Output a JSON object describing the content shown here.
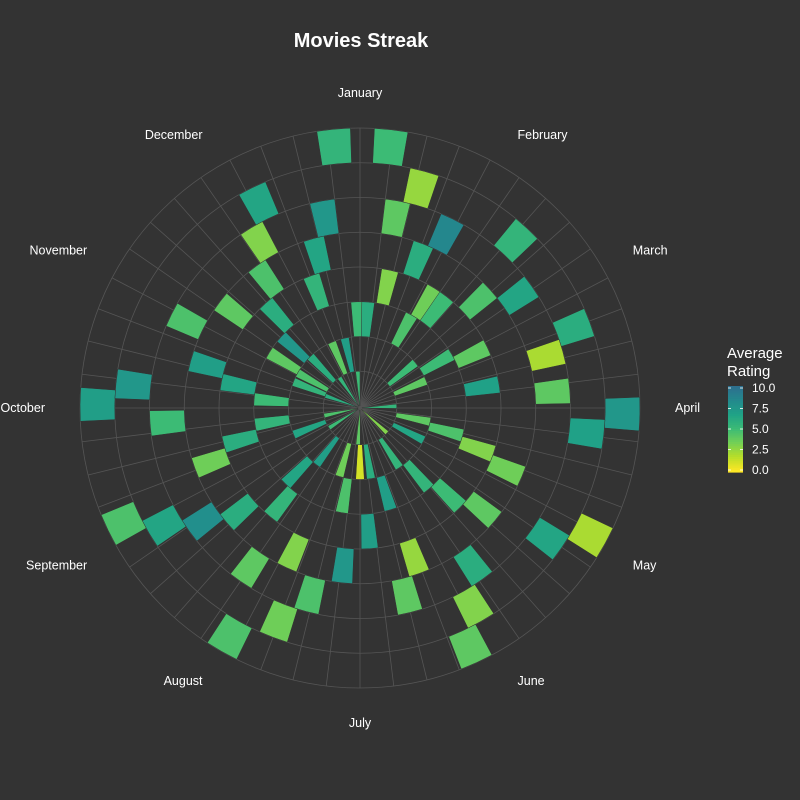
{
  "chart_data": {
    "type": "heatmap",
    "coordinate_system": "polar",
    "title": "Movies Streak",
    "theta_labels": [
      "January",
      "February",
      "March",
      "April",
      "May",
      "June",
      "July",
      "August",
      "September",
      "October",
      "November",
      "December"
    ],
    "radial_bins": 8,
    "legend": {
      "title_lines": [
        "Average",
        "Rating"
      ],
      "ticks": [
        "10.0",
        "7.5",
        "5.0",
        "2.5",
        "0.0"
      ],
      "range": [
        0,
        10
      ],
      "placement": "right"
    },
    "colorscale": [
      "#fde725",
      "#b8de29",
      "#74d055",
      "#3cbb75",
      "#20a386",
      "#238a8d",
      "#2d708e"
    ],
    "note_cells": "each cell = [day_of_year 1-365, ring 1-8 (1 = innermost), average rating]",
    "cells": [
      [
        4,
        8,
        5.0
      ],
      [
        8,
        6,
        4.0
      ],
      [
        13,
        7,
        2.5
      ],
      [
        19,
        5,
        6.0
      ],
      [
        24,
        6,
        8.5
      ],
      [
        30,
        4,
        3.5
      ],
      [
        36,
        4,
        5.0
      ],
      [
        41,
        7,
        5.5
      ],
      [
        46,
        5,
        4.5
      ],
      [
        53,
        6,
        6.5
      ],
      [
        58,
        3,
        5.0
      ],
      [
        63,
        4,
        4.0
      ],
      [
        68,
        7,
        6.0
      ],
      [
        73,
        6,
        2.0
      ],
      [
        79,
        4,
        6.8
      ],
      [
        84,
        6,
        4.0
      ],
      [
        90,
        8,
        7.5
      ],
      [
        95,
        7,
        6.8
      ],
      [
        100,
        2,
        4.0
      ],
      [
        104,
        3,
        4.5
      ],
      [
        108,
        4,
        3.0
      ],
      [
        112,
        5,
        3.5
      ],
      [
        118,
        8,
        2.0
      ],
      [
        124,
        7,
        6.5
      ],
      [
        129,
        5,
        4.0
      ],
      [
        134,
        4,
        5.0
      ],
      [
        139,
        3,
        5.5
      ],
      [
        144,
        6,
        6.0
      ],
      [
        150,
        7,
        3.0
      ],
      [
        155,
        8,
        4.0
      ],
      [
        160,
        5,
        2.5
      ],
      [
        166,
        6,
        4.0
      ],
      [
        171,
        2,
        6.0
      ],
      [
        176,
        4,
        7.0
      ],
      [
        180,
        2,
        1.0
      ],
      [
        186,
        5,
        7.5
      ],
      [
        190,
        3,
        4.5
      ],
      [
        195,
        6,
        4.5
      ],
      [
        201,
        7,
        3.5
      ],
      [
        205,
        5,
        3.0
      ],
      [
        210,
        8,
        4.5
      ],
      [
        215,
        6,
        4.0
      ],
      [
        220,
        4,
        5.5
      ],
      [
        225,
        3,
        6.5
      ],
      [
        230,
        5,
        6.0
      ],
      [
        235,
        6,
        8.0
      ],
      [
        240,
        7,
        6.5
      ],
      [
        245,
        8,
        4.5
      ],
      [
        251,
        5,
        3.5
      ],
      [
        256,
        4,
        6.0
      ],
      [
        262,
        3,
        5.5
      ],
      [
        267,
        6,
        5.0
      ],
      [
        272,
        8,
        7.0
      ],
      [
        277,
        7,
        7.5
      ],
      [
        282,
        4,
        6.5
      ],
      [
        287,
        5,
        7.0
      ],
      [
        293,
        2,
        5.5
      ],
      [
        298,
        6,
        4.5
      ],
      [
        303,
        3,
        4.0
      ],
      [
        309,
        5,
        4.0
      ],
      [
        314,
        3,
        7.5
      ],
      [
        320,
        4,
        6.0
      ],
      [
        326,
        5,
        4.5
      ],
      [
        331,
        6,
        3.0
      ],
      [
        336,
        7,
        6.5
      ],
      [
        342,
        4,
        5.5
      ],
      [
        347,
        5,
        6.5
      ],
      [
        352,
        6,
        7.5
      ],
      [
        357,
        8,
        5.5
      ],
      [
        361,
        3,
        5.0
      ],
      [
        2,
        3,
        6.0
      ],
      [
        10,
        4,
        3.0
      ],
      [
        27,
        3,
        4.5
      ],
      [
        49,
        2,
        5.0
      ],
      [
        66,
        2,
        4.0
      ],
      [
        86,
        1,
        5.5
      ],
      [
        116,
        2,
        6.5
      ],
      [
        132,
        1,
        3.0
      ],
      [
        146,
        2,
        5.5
      ],
      [
        163,
        3,
        7.0
      ],
      [
        183,
        1,
        4.0
      ],
      [
        197,
        2,
        3.5
      ],
      [
        218,
        2,
        7.0
      ],
      [
        238,
        1,
        5.0
      ],
      [
        249,
        2,
        6.5
      ],
      [
        259,
        1,
        4.5
      ],
      [
        276,
        3,
        5.0
      ],
      [
        291,
        1,
        6.0
      ],
      [
        301,
        2,
        4.5
      ],
      [
        318,
        2,
        6.0
      ],
      [
        328,
        1,
        5.5
      ],
      [
        339,
        2,
        4.0
      ],
      [
        350,
        2,
        7.0
      ],
      [
        359,
        1,
        5.0
      ]
    ]
  }
}
